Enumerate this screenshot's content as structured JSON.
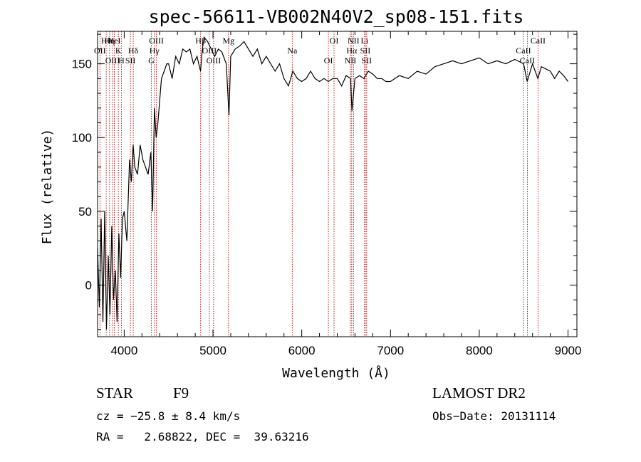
{
  "chart_data": {
    "type": "line",
    "title": "spec-56611-VB002N40V2_sp08-151.fits",
    "xlabel": "Wavelength (Å)",
    "ylabel": "Flux (relative)",
    "xlim": [
      3700,
      9100
    ],
    "ylim": [
      -35,
      172
    ],
    "x_ticks": [
      4000,
      5000,
      6000,
      7000,
      8000,
      9000
    ],
    "y_ticks": [
      0,
      50,
      100,
      150
    ],
    "grid": false,
    "series": [
      {
        "x": [
          3700,
          3720,
          3740,
          3760,
          3780,
          3800,
          3820,
          3840,
          3860,
          3880,
          3900,
          3920,
          3940,
          3960,
          3980,
          4000,
          4030,
          4060,
          4080,
          4100,
          4120,
          4150,
          4180,
          4210,
          4240,
          4270,
          4300,
          4320,
          4340,
          4360,
          4380,
          4400,
          4420,
          4450,
          4480,
          4500,
          4540,
          4580,
          4620,
          4660,
          4700,
          4740,
          4780,
          4820,
          4860,
          4880,
          4900,
          4940,
          4980,
          5020,
          5060,
          5100,
          5150,
          5180,
          5200,
          5250,
          5300,
          5350,
          5400,
          5450,
          5500,
          5550,
          5600,
          5650,
          5700,
          5750,
          5800,
          5850,
          5900,
          5950,
          6000,
          6050,
          6100,
          6150,
          6200,
          6250,
          6300,
          6350,
          6400,
          6450,
          6500,
          6550,
          6565,
          6600,
          6650,
          6700,
          6750,
          6800,
          6850,
          6900,
          6950,
          7000,
          7050,
          7100,
          7200,
          7300,
          7400,
          7500,
          7600,
          7700,
          7800,
          7900,
          8000,
          8100,
          8200,
          8300,
          8400,
          8500,
          8540,
          8600,
          8660,
          8700,
          8800,
          8850,
          8900,
          8950,
          9000
        ],
        "y": [
          25,
          -15,
          45,
          -25,
          50,
          -30,
          20,
          -20,
          40,
          -10,
          10,
          -25,
          35,
          5,
          45,
          50,
          30,
          85,
          70,
          95,
          80,
          75,
          95,
          85,
          80,
          75,
          90,
          50,
          120,
          100,
          110,
          125,
          140,
          145,
          150,
          150,
          140,
          155,
          150,
          160,
          158,
          160,
          150,
          155,
          145,
          160,
          168,
          165,
          160,
          155,
          160,
          158,
          150,
          115,
          155,
          160,
          162,
          165,
          160,
          155,
          160,
          150,
          155,
          150,
          145,
          150,
          140,
          135,
          145,
          140,
          138,
          140,
          145,
          140,
          138,
          140,
          138,
          140,
          140,
          135,
          142,
          140,
          118,
          140,
          142,
          140,
          145,
          143,
          140,
          140,
          138,
          138,
          140,
          142,
          140,
          145,
          143,
          148,
          150,
          152,
          150,
          152,
          154,
          150,
          152,
          150,
          153,
          150,
          138,
          150,
          140,
          148,
          145,
          140,
          145,
          142,
          138
        ]
      }
    ],
    "lines": [
      {
        "label": "Hθ",
        "x": 3797
      },
      {
        "label": "OII",
        "x": 3727
      },
      {
        "label": "OIII",
        "x": 3869
      },
      {
        "label": "Hη",
        "x": 3835
      },
      {
        "label": "K",
        "x": 3934
      },
      {
        "label": "H",
        "x": 3968
      },
      {
        "label": "HeI",
        "x": 3889
      },
      {
        "label": "Hδ",
        "x": 4102
      },
      {
        "label": "SII",
        "x": 4070
      },
      {
        "label": "OIII",
        "x": 4363
      },
      {
        "label": "Hγ",
        "x": 4340
      },
      {
        "label": "G",
        "x": 4305
      },
      {
        "label": "Hβ",
        "x": 4861
      },
      {
        "label": "OIII",
        "x": 4959
      },
      {
        "label": "OIII",
        "x": 5007
      },
      {
        "label": "Mg",
        "x": 5175
      },
      {
        "label": "Na",
        "x": 5893
      },
      {
        "label": "OI",
        "x": 6300
      },
      {
        "label": "OI",
        "x": 6364
      },
      {
        "label": "Hα",
        "x": 6563
      },
      {
        "label": "NII",
        "x": 6548
      },
      {
        "label": "NII",
        "x": 6583
      },
      {
        "label": "SII",
        "x": 6716
      },
      {
        "label": "SII",
        "x": 6731
      },
      {
        "label": "Li",
        "x": 6708
      },
      {
        "label": "CaII",
        "x": 8498
      },
      {
        "label": "CaII",
        "x": 8542
      },
      {
        "label": "CaII",
        "x": 8662
      }
    ]
  },
  "info": {
    "class": "STAR",
    "subclass": "F9",
    "survey": "LAMOST DR2",
    "cz": "cz = −25.8 ± 8.4 km/s",
    "obs_date": "Obs−Date: 20131114",
    "coords": "RA =   2.68822, DEC =  39.63216"
  }
}
